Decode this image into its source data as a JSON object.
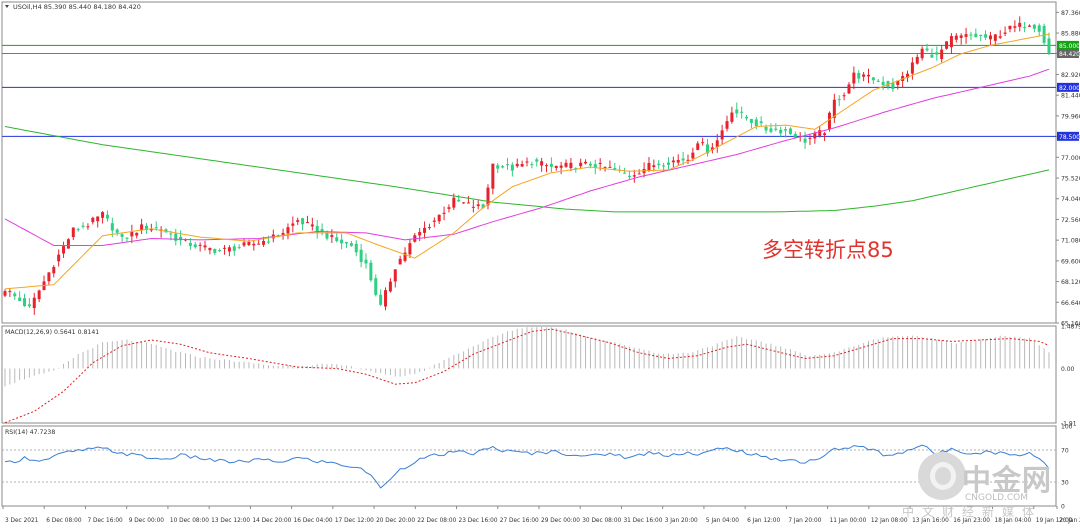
{
  "window": {
    "symbol_line": "USOil,H4  85.390 85.440 84.180 84.420"
  },
  "annotation": "多空转折点85",
  "colors": {
    "bull": "#e8222c",
    "bear": "#2ecf82",
    "ma_fast": "#f5a623",
    "ma_mid": "#e03ee0",
    "ma_slow": "#2fb52f",
    "hline_green": "#14a314",
    "hline_blue": "#2233dd",
    "macd_signal": "#dd2222",
    "rsi_line": "#3a7fd6",
    "grid": "#cccccc",
    "axis_text": "#333333"
  },
  "watermark": {
    "name": "中金网",
    "domain": "CNGOLD.COM",
    "sub": "中文财经新媒体"
  },
  "chart_data": [
    {
      "type": "candlestick",
      "title": "USOil,H4  85.390 85.440 84.180 84.420",
      "ylim": [
        65.16,
        88.1
      ],
      "y_ticks": [
        "87.360",
        "85.880",
        "84.420",
        "82.920",
        "81.440",
        "79.960",
        "78.480",
        "77.000",
        "75.520",
        "74.040",
        "72.560",
        "71.080",
        "69.600",
        "68.120",
        "66.640",
        "65.160"
      ],
      "price_tags": [
        "85.000",
        "84.420",
        "82.000",
        "78.500"
      ],
      "horizontal_levels": [
        {
          "value": 85.0,
          "color": "green"
        },
        {
          "value": 84.42,
          "color": "gray"
        },
        {
          "value": 82.0,
          "color": "blue"
        },
        {
          "value": 78.5,
          "color": "blue"
        }
      ],
      "x_labels": [
        "3 Dec 2021",
        "6 Dec 08:00",
        "7 Dec 16:00",
        "9 Dec 00:00",
        "10 Dec 08:00",
        "13 Dec 12:00",
        "14 Dec 20:00",
        "16 Dec 04:00",
        "17 Dec 12:00",
        "20 Dec 20:00",
        "22 Dec 08:00",
        "23 Dec 16:00",
        "27 Dec 16:00",
        "29 Dec 00:00",
        "30 Dec 08:00",
        "31 Dec 16:00",
        "3 Jan 20:00",
        "5 Jan 04:00",
        "6 Jan 12:00",
        "7 Jan 20:00",
        "11 Jan 00:00",
        "12 Jan 08:00",
        "13 Jan 16:00",
        "16 Jan 23:00",
        "18 Jan 04:00",
        "19 Jan 12:00",
        "20 Jan 20:00"
      ],
      "close_path": [
        [
          0,
          67.6
        ],
        [
          5,
          66.2
        ],
        [
          10,
          69.4
        ],
        [
          14,
          71.8
        ],
        [
          17,
          72.2
        ],
        [
          20,
          72.9
        ],
        [
          24,
          71.1
        ],
        [
          28,
          72.0
        ],
        [
          32,
          71.9
        ],
        [
          36,
          71.0
        ],
        [
          40,
          70.6
        ],
        [
          44,
          70.3
        ],
        [
          48,
          70.6
        ],
        [
          52,
          70.9
        ],
        [
          56,
          71.4
        ],
        [
          60,
          72.5
        ],
        [
          64,
          71.8
        ],
        [
          68,
          71.0
        ],
        [
          71,
          70.7
        ],
        [
          74,
          69.3
        ],
        [
          77,
          66.3
        ],
        [
          80,
          69.2
        ],
        [
          84,
          71.3
        ],
        [
          88,
          72.5
        ],
        [
          92,
          73.9
        ],
        [
          95,
          73.6
        ],
        [
          98,
          73.4
        ],
        [
          100,
          76.5
        ],
        [
          104,
          76.2
        ],
        [
          108,
          76.7
        ],
        [
          112,
          76.3
        ],
        [
          116,
          76.4
        ],
        [
          120,
          76.5
        ],
        [
          124,
          76.2
        ],
        [
          128,
          75.7
        ],
        [
          132,
          76.4
        ],
        [
          136,
          76.7
        ],
        [
          140,
          76.9
        ],
        [
          142,
          78.2
        ],
        [
          144,
          77.5
        ],
        [
          146,
          78.2
        ],
        [
          149,
          80.4
        ],
        [
          152,
          79.8
        ],
        [
          156,
          79.0
        ],
        [
          160,
          78.9
        ],
        [
          164,
          78.2
        ],
        [
          168,
          78.9
        ],
        [
          170,
          81.0
        ],
        [
          172,
          81.6
        ],
        [
          174,
          82.9
        ],
        [
          178,
          82.6
        ],
        [
          182,
          82.0
        ],
        [
          185,
          83.1
        ],
        [
          188,
          84.7
        ],
        [
          191,
          84.2
        ],
        [
          194,
          85.5
        ],
        [
          198,
          85.7
        ],
        [
          202,
          85.5
        ],
        [
          206,
          86.2
        ],
        [
          210,
          86.6
        ],
        [
          212,
          86.2
        ],
        [
          214,
          84.4
        ]
      ],
      "ma_fast": [
        [
          0,
          67.6
        ],
        [
          10,
          67.9
        ],
        [
          20,
          71.4
        ],
        [
          30,
          71.9
        ],
        [
          40,
          71.3
        ],
        [
          50,
          71.0
        ],
        [
          60,
          71.6
        ],
        [
          70,
          71.6
        ],
        [
          76,
          70.8
        ],
        [
          84,
          69.8
        ],
        [
          92,
          71.6
        ],
        [
          98,
          73.4
        ],
        [
          104,
          74.9
        ],
        [
          112,
          75.9
        ],
        [
          120,
          76.3
        ],
        [
          128,
          76.0
        ],
        [
          136,
          76.1
        ],
        [
          142,
          77.0
        ],
        [
          148,
          78.1
        ],
        [
          154,
          79.2
        ],
        [
          160,
          79.3
        ],
        [
          166,
          79.0
        ],
        [
          172,
          80.4
        ],
        [
          178,
          81.8
        ],
        [
          184,
          82.6
        ],
        [
          190,
          83.4
        ],
        [
          196,
          84.4
        ],
        [
          202,
          85.0
        ],
        [
          208,
          85.4
        ],
        [
          214,
          85.8
        ]
      ],
      "ma_mid": [
        [
          0,
          72.6
        ],
        [
          10,
          70.7
        ],
        [
          20,
          70.7
        ],
        [
          30,
          71.2
        ],
        [
          40,
          71.1
        ],
        [
          52,
          71.2
        ],
        [
          64,
          71.7
        ],
        [
          74,
          71.6
        ],
        [
          82,
          71.1
        ],
        [
          92,
          71.5
        ],
        [
          100,
          72.4
        ],
        [
          110,
          73.4
        ],
        [
          120,
          74.6
        ],
        [
          130,
          75.6
        ],
        [
          140,
          76.4
        ],
        [
          150,
          77.2
        ],
        [
          160,
          78.2
        ],
        [
          170,
          79.1
        ],
        [
          180,
          80.2
        ],
        [
          190,
          81.2
        ],
        [
          200,
          82.0
        ],
        [
          210,
          82.8
        ],
        [
          214,
          83.3
        ]
      ],
      "ma_slow": [
        [
          0,
          79.2
        ],
        [
          20,
          77.9
        ],
        [
          40,
          76.9
        ],
        [
          60,
          75.9
        ],
        [
          80,
          74.9
        ],
        [
          100,
          73.8
        ],
        [
          115,
          73.3
        ],
        [
          125,
          73.1
        ],
        [
          140,
          73.1
        ],
        [
          158,
          73.1
        ],
        [
          170,
          73.2
        ],
        [
          178,
          73.5
        ],
        [
          186,
          73.9
        ],
        [
          195,
          74.6
        ],
        [
          205,
          75.4
        ],
        [
          214,
          76.1
        ]
      ]
    },
    {
      "type": "bar",
      "title": "MACD(12,26,9) 0.5641 0.8141",
      "ylim": [
        -1.91,
        1.49
      ],
      "y_ticks": [
        "1.4879",
        "0.00",
        "-1.91"
      ],
      "histogram": [
        [
          0,
          -0.6
        ],
        [
          5,
          -0.3
        ],
        [
          10,
          -0.1
        ],
        [
          15,
          0.5
        ],
        [
          20,
          0.9
        ],
        [
          25,
          1.0
        ],
        [
          30,
          0.85
        ],
        [
          35,
          0.6
        ],
        [
          40,
          0.4
        ],
        [
          45,
          0.3
        ],
        [
          50,
          0.2
        ],
        [
          55,
          0.1
        ],
        [
          60,
          0.1
        ],
        [
          65,
          0.15
        ],
        [
          70,
          0.1
        ],
        [
          75,
          -0.1
        ],
        [
          80,
          -0.3
        ],
        [
          85,
          -0.15
        ],
        [
          90,
          0.3
        ],
        [
          95,
          0.7
        ],
        [
          100,
          1.1
        ],
        [
          105,
          1.4
        ],
        [
          110,
          1.49
        ],
        [
          115,
          1.35
        ],
        [
          120,
          1.1
        ],
        [
          125,
          0.9
        ],
        [
          130,
          0.7
        ],
        [
          135,
          0.5
        ],
        [
          140,
          0.55
        ],
        [
          145,
          0.8
        ],
        [
          150,
          1.1
        ],
        [
          155,
          0.95
        ],
        [
          160,
          0.7
        ],
        [
          165,
          0.45
        ],
        [
          170,
          0.55
        ],
        [
          175,
          0.85
        ],
        [
          180,
          1.1
        ],
        [
          185,
          1.15
        ],
        [
          190,
          1.05
        ],
        [
          195,
          0.9
        ],
        [
          200,
          1.0
        ],
        [
          205,
          1.15
        ],
        [
          210,
          1.05
        ],
        [
          214,
          0.56
        ]
      ],
      "signal": [
        [
          0,
          -1.9
        ],
        [
          6,
          -1.5
        ],
        [
          12,
          -0.8
        ],
        [
          18,
          0.2
        ],
        [
          24,
          0.8
        ],
        [
          30,
          1.0
        ],
        [
          36,
          0.85
        ],
        [
          42,
          0.55
        ],
        [
          50,
          0.35
        ],
        [
          60,
          0.05
        ],
        [
          68,
          0.0
        ],
        [
          74,
          -0.2
        ],
        [
          80,
          -0.55
        ],
        [
          84,
          -0.5
        ],
        [
          90,
          -0.1
        ],
        [
          96,
          0.5
        ],
        [
          102,
          0.9
        ],
        [
          108,
          1.3
        ],
        [
          112,
          1.38
        ],
        [
          118,
          1.15
        ],
        [
          124,
          0.9
        ],
        [
          130,
          0.55
        ],
        [
          136,
          0.35
        ],
        [
          142,
          0.45
        ],
        [
          148,
          0.75
        ],
        [
          152,
          0.85
        ],
        [
          158,
          0.6
        ],
        [
          164,
          0.35
        ],
        [
          170,
          0.45
        ],
        [
          176,
          0.75
        ],
        [
          182,
          1.05
        ],
        [
          188,
          1.05
        ],
        [
          194,
          0.95
        ],
        [
          200,
          1.0
        ],
        [
          206,
          1.05
        ],
        [
          212,
          0.95
        ],
        [
          214,
          0.81
        ]
      ]
    },
    {
      "type": "line",
      "title": "RSI(14) 47.7238",
      "ylim": [
        0,
        100
      ],
      "y_ticks": [
        "100",
        "70",
        "30",
        "0"
      ],
      "levels": [
        70,
        30
      ],
      "series": [
        {
          "values": [
            [
              0,
              53
            ],
            [
              4,
              60
            ],
            [
              8,
              57
            ],
            [
              12,
              66
            ],
            [
              16,
              70
            ],
            [
              20,
              72
            ],
            [
              24,
              66
            ],
            [
              28,
              62
            ],
            [
              32,
              58
            ],
            [
              36,
              63
            ],
            [
              40,
              60
            ],
            [
              44,
              56
            ],
            [
              48,
              55
            ],
            [
              52,
              58
            ],
            [
              56,
              55
            ],
            [
              60,
              60
            ],
            [
              64,
              56
            ],
            [
              68,
              53
            ],
            [
              72,
              48
            ],
            [
              75,
              40
            ],
            [
              77,
              21
            ],
            [
              80,
              42
            ],
            [
              84,
              56
            ],
            [
              88,
              63
            ],
            [
              92,
              67
            ],
            [
              96,
              66
            ],
            [
              100,
              73
            ],
            [
              104,
              67
            ],
            [
              108,
              66
            ],
            [
              112,
              68
            ],
            [
              116,
              65
            ],
            [
              120,
              62
            ],
            [
              124,
              66
            ],
            [
              128,
              60
            ],
            [
              132,
              67
            ],
            [
              136,
              64
            ],
            [
              140,
              67
            ],
            [
              142,
              63
            ],
            [
              146,
              71
            ],
            [
              149,
              72
            ],
            [
              152,
              66
            ],
            [
              156,
              60
            ],
            [
              160,
              58
            ],
            [
              164,
              55
            ],
            [
              168,
              62
            ],
            [
              170,
              71
            ],
            [
              172,
              72
            ],
            [
              174,
              75
            ],
            [
              178,
              70
            ],
            [
              181,
              62
            ],
            [
              185,
              70
            ],
            [
              188,
              76
            ],
            [
              191,
              64
            ],
            [
              194,
              72
            ],
            [
              198,
              66
            ],
            [
              202,
              68
            ],
            [
              206,
              64
            ],
            [
              210,
              66
            ],
            [
              212,
              60
            ],
            [
              214,
              47.7
            ]
          ]
        }
      ]
    }
  ]
}
